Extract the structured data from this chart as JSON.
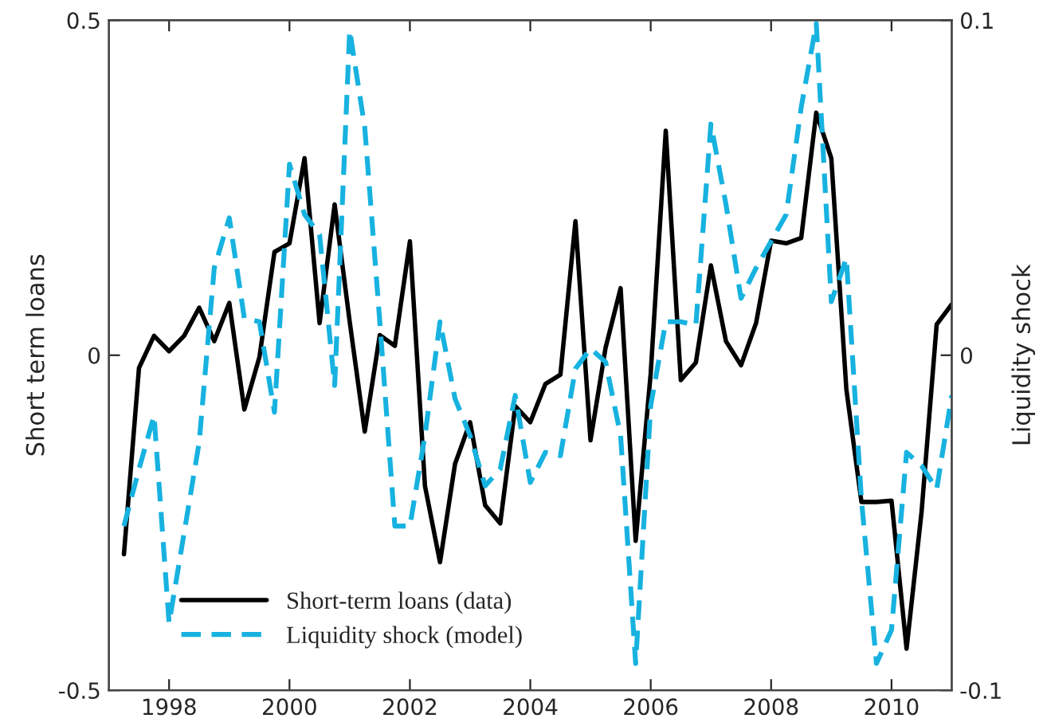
{
  "chart_data": {
    "type": "line",
    "x": [
      1997.25,
      1997.5,
      1997.75,
      1998,
      1998.25,
      1998.5,
      1998.75,
      1999,
      1999.25,
      1999.5,
      1999.75,
      2000,
      2000.25,
      2000.5,
      2000.75,
      2001,
      2001.25,
      2001.5,
      2001.75,
      2002,
      2002.25,
      2002.5,
      2002.75,
      2003,
      2003.25,
      2003.5,
      2003.75,
      2004,
      2004.25,
      2004.5,
      2004.75,
      2005,
      2005.25,
      2005.5,
      2005.75,
      2006,
      2006.25,
      2006.5,
      2006.75,
      2007,
      2007.25,
      2007.5,
      2007.75,
      2008,
      2008.25,
      2008.5,
      2008.75,
      2009,
      2009.25,
      2009.5,
      2009.75,
      2010,
      2010.25,
      2010.5,
      2010.75,
      2011
    ],
    "series": [
      {
        "name": "Short-term loans (data)",
        "color": "#000000",
        "line_style": "solid",
        "values": [
          -0.297,
          -0.019,
          0.029,
          0.006,
          0.029,
          0.071,
          0.021,
          0.078,
          -0.081,
          -0.003,
          0.154,
          0.167,
          0.294,
          0.048,
          0.225,
          0.05,
          -0.114,
          0.03,
          0.014,
          0.17,
          -0.195,
          -0.309,
          -0.162,
          -0.1,
          -0.224,
          -0.251,
          -0.076,
          -0.1,
          -0.043,
          -0.029,
          0.2,
          -0.127,
          0.011,
          0.1,
          -0.277,
          -0.027,
          0.335,
          -0.037,
          -0.011,
          0.134,
          0.021,
          -0.015,
          0.048,
          0.171,
          0.167,
          0.175,
          0.362,
          0.294,
          -0.051,
          -0.219,
          -0.219,
          -0.217,
          -0.438,
          -0.233,
          0.046,
          0.076
        ]
      },
      {
        "name": "Liquidity shock (model)",
        "color": "#17b2e0",
        "line_style": "dashed",
        "axis": "y2",
        "values": [
          -0.051,
          -0.034,
          -0.018,
          -0.08,
          -0.053,
          -0.026,
          0.026,
          0.041,
          0.011,
          0.01,
          -0.017,
          0.057,
          0.042,
          0.036,
          -0.009,
          0.097,
          0.068,
          0.01,
          -0.051,
          -0.051,
          -0.024,
          0.01,
          -0.013,
          -0.024,
          -0.039,
          -0.034,
          -0.012,
          -0.038,
          -0.029,
          -0.03,
          -0.004,
          0.002,
          -0.002,
          -0.024,
          -0.092,
          -0.015,
          0.01,
          0.01,
          0.009,
          0.069,
          0.045,
          0.017,
          0.026,
          0.034,
          0.042,
          0.074,
          0.099,
          0.016,
          0.029,
          -0.043,
          -0.092,
          -0.082,
          -0.029,
          -0.033,
          -0.04,
          -0.012
        ]
      }
    ],
    "ylabel": "Short term loans",
    "y2label": "Liquidity shock",
    "xlim": [
      1997,
      2011
    ],
    "xticks": [
      1998,
      2000,
      2002,
      2004,
      2006,
      2008,
      2010
    ],
    "ylim": [
      -0.5,
      0.5
    ],
    "yticks": [
      -0.5,
      0,
      0.5
    ],
    "y2lim": [
      -0.1,
      0.1
    ],
    "y2ticks": [
      -0.1,
      0,
      0.1
    ],
    "grid": false,
    "legend": "bottom left",
    "marker": "none"
  }
}
